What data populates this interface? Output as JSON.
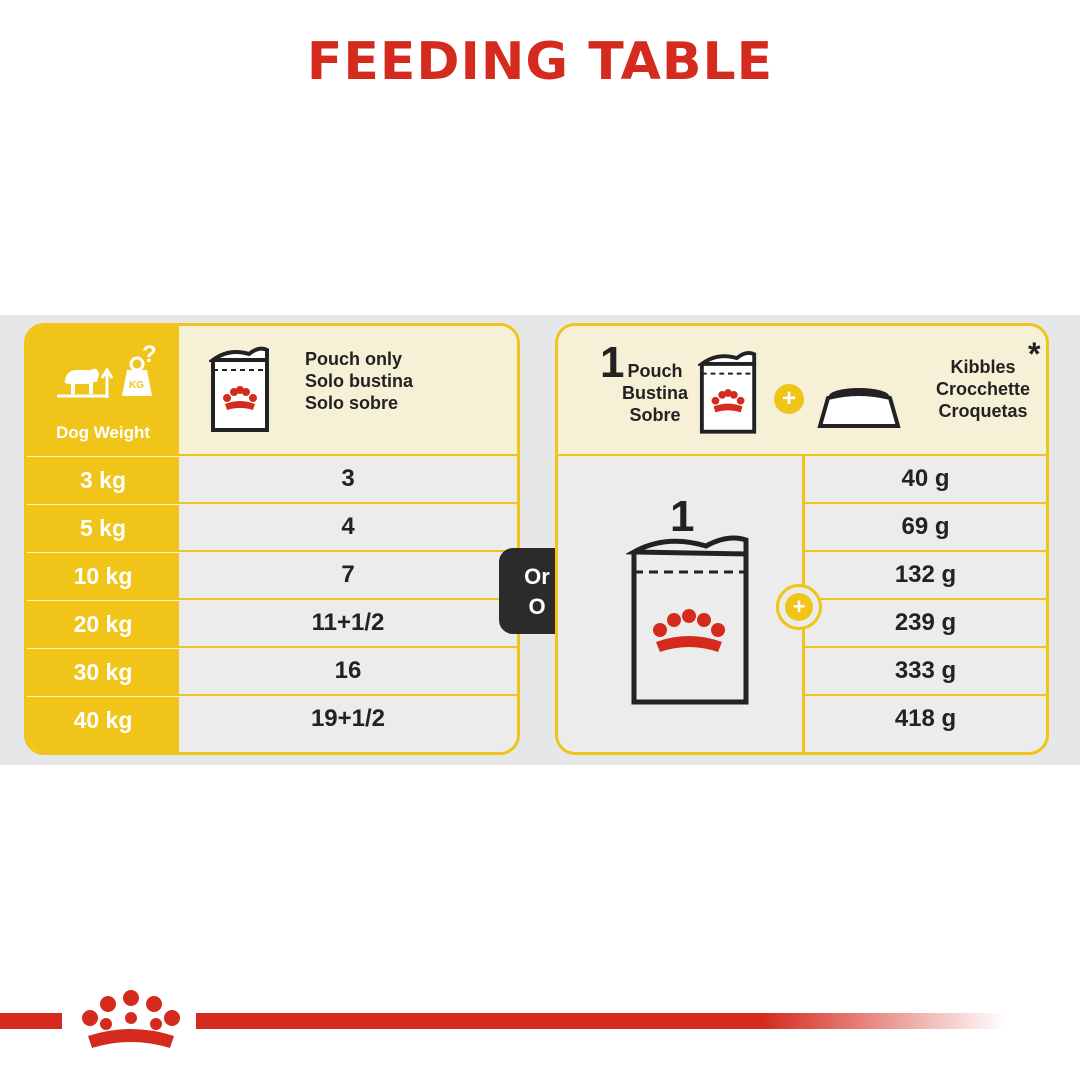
{
  "title": "FEEDING TABLE",
  "left_panel": {
    "header_label": "Dog Weight",
    "header_lines": [
      "Pouch only",
      "Solo bustina",
      "Solo sobre"
    ],
    "rows": [
      {
        "weight": "3 kg",
        "pouches": "3"
      },
      {
        "weight": "5 kg",
        "pouches": "4"
      },
      {
        "weight": "10 kg",
        "pouches": "7"
      },
      {
        "weight": "20 kg",
        "pouches": "11+1/2"
      },
      {
        "weight": "30 kg",
        "pouches": "16"
      },
      {
        "weight": "40 kg",
        "pouches": "19+1/2"
      }
    ]
  },
  "or_box": {
    "line1": "Or",
    "line2": "O"
  },
  "right_panel": {
    "header_number": "1",
    "header_pouch_lines": [
      "Pouch",
      "Bustina",
      "Sobre"
    ],
    "header_kibble_lines": [
      "Kibbles",
      "Crocchette",
      "Croquetas"
    ],
    "asterisk": "*",
    "pouch_count": "1",
    "kibbles": [
      "40 g",
      "69 g",
      "132 g",
      "239 g",
      "333 g",
      "418 g"
    ]
  },
  "icons": {
    "weight_icon": "dog-weight-scale-icon",
    "pouch_icon": "pouch-icon",
    "bowl_icon": "bowl-icon",
    "crown_icon": "royal-canin-crown-icon",
    "plus_icon": "plus-icon"
  },
  "colors": {
    "brand_red": "#d52b1e",
    "accent_yellow": "#f0c419"
  }
}
